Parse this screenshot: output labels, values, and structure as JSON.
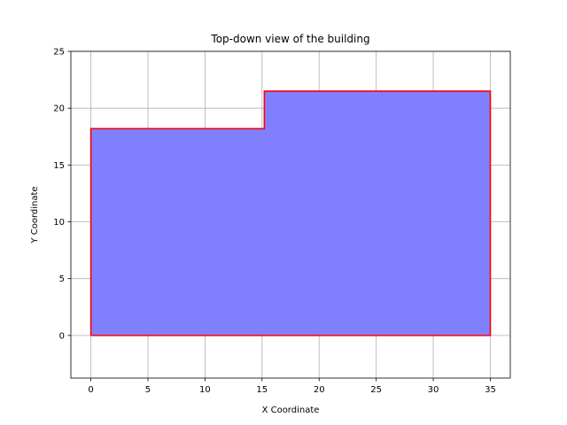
{
  "chart_data": {
    "type": "area",
    "title": "Top-down view of the building",
    "xlabel": "X Coordinate",
    "ylabel": "Y Coordinate",
    "xlim": [
      -1.75,
      36.75
    ],
    "ylim": [
      -3.75,
      25
    ],
    "xticks": [
      0,
      5,
      10,
      15,
      20,
      25,
      30,
      35
    ],
    "yticks": [
      0,
      5,
      10,
      15,
      20,
      25
    ],
    "grid": true,
    "legend": "none",
    "series": [
      {
        "outline": [
          [
            0,
            0
          ],
          [
            0,
            18.2
          ],
          [
            15.2,
            18.2
          ],
          [
            15.2,
            21.5
          ],
          [
            35,
            21.5
          ],
          [
            35,
            0
          ],
          [
            0,
            0
          ]
        ],
        "fill_color": "#8080ff",
        "edge_color": "#ff0000"
      }
    ]
  }
}
